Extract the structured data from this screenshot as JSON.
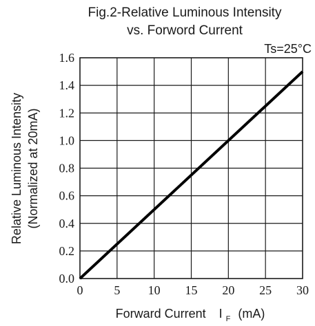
{
  "chart_data": {
    "type": "line",
    "title_line1": "Fig.2-Relative Luminous Intensity",
    "title_line2": "vs. Forword Current",
    "condition": "Ts=25°C",
    "xlabel": "Forward Current",
    "xlabel_symbol": "I",
    "xlabel_subscript": "F",
    "xlabel_unit": "(mA)",
    "ylabel_line1": "Relative Luminous Intensity",
    "ylabel_line2": "(Normalized at 20mA)",
    "xlim": [
      0,
      30
    ],
    "ylim": [
      0,
      1.6
    ],
    "x_ticks": [
      0,
      5,
      10,
      15,
      20,
      25,
      30
    ],
    "x_tick_labels": [
      "0",
      "5",
      "10",
      "15",
      "20",
      "25",
      "30"
    ],
    "y_ticks": [
      0,
      0.2,
      0.4,
      0.6,
      0.8,
      1.0,
      1.2,
      1.4,
      1.6
    ],
    "y_tick_labels": [
      "0.0",
      "0.2",
      "0.4",
      "0.6",
      "0.8",
      "1.0",
      "1.2",
      "1.4",
      "1.6"
    ],
    "grid": true,
    "series": [
      {
        "x": [
          0,
          30
        ],
        "y": [
          0,
          1.5
        ],
        "color": "#000000"
      }
    ]
  }
}
